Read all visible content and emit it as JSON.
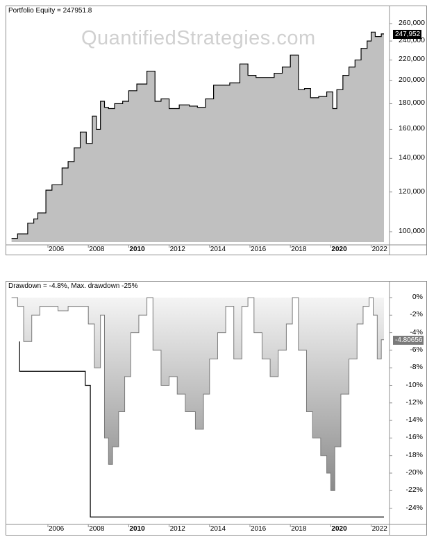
{
  "watermark": "QuantifiedStrategies.com",
  "chart_data": [
    {
      "type": "area",
      "title": "Portfolio Equity = 247951.8",
      "xlabel": "",
      "ylabel": "",
      "scale": "log",
      "ylim": [
        92000,
        268000
      ],
      "current_value_label": "247,952",
      "yticks": [
        "260,000",
        "240,000",
        "220,000",
        "200,000",
        "180,000",
        "160,000",
        "140,000",
        "120,000",
        "100,000"
      ],
      "xticks": [
        {
          "label": "2006",
          "bold": false
        },
        {
          "label": "2008",
          "bold": false
        },
        {
          "label": "2010",
          "bold": true
        },
        {
          "label": "2012",
          "bold": false
        },
        {
          "label": "2014",
          "bold": false
        },
        {
          "label": "2016",
          "bold": false
        },
        {
          "label": "2018",
          "bold": false
        },
        {
          "label": "2020",
          "bold": true
        },
        {
          "label": "2022",
          "bold": false
        }
      ],
      "x": [
        2004.2,
        2004.5,
        2005.0,
        2005.3,
        2005.5,
        2005.9,
        2006.2,
        2006.7,
        2007.0,
        2007.3,
        2007.6,
        2007.9,
        2008.2,
        2008.4,
        2008.6,
        2008.8,
        2009.0,
        2009.3,
        2009.7,
        2010.0,
        2010.4,
        2010.9,
        2011.3,
        2011.6,
        2012.0,
        2012.5,
        2013.0,
        2013.4,
        2013.8,
        2014.2,
        2014.6,
        2015.0,
        2015.5,
        2015.9,
        2016.3,
        2016.8,
        2017.2,
        2017.6,
        2018.0,
        2018.4,
        2018.7,
        2019.0,
        2019.4,
        2019.8,
        2020.1,
        2020.3,
        2020.6,
        2020.9,
        2021.2,
        2021.5,
        2021.8,
        2022.0,
        2022.2,
        2022.5
      ],
      "values": [
        97000,
        99000,
        104000,
        106000,
        109000,
        121000,
        124000,
        134000,
        138000,
        147000,
        158000,
        150000,
        170000,
        160000,
        182000,
        177000,
        176000,
        180000,
        182000,
        191000,
        197000,
        209000,
        182000,
        184000,
        176000,
        179000,
        178000,
        177000,
        184000,
        196000,
        196000,
        198000,
        216000,
        205000,
        203000,
        203000,
        207000,
        213000,
        225000,
        192000,
        193000,
        185000,
        186000,
        190000,
        176000,
        192000,
        205000,
        213000,
        220000,
        232000,
        240000,
        250000,
        245000,
        247952
      ]
    },
    {
      "type": "area",
      "title": "Drawdown = -4.8%, Max. drawdown -25%",
      "xlabel": "",
      "ylabel": "",
      "ylim": [
        -26,
        0.5
      ],
      "current_value_label": "-4.80656",
      "yticks": [
        "0%",
        "-2%",
        "-4%",
        "-6%",
        "-8%",
        "-10%",
        "-12%",
        "-14%",
        "-16%",
        "-18%",
        "-20%",
        "-22%",
        "-24%"
      ],
      "max_drawdown": -25,
      "current_drawdown": -4.8,
      "x": [
        2004.2,
        2004.5,
        2004.8,
        2005.2,
        2005.6,
        2006.0,
        2006.5,
        2007.0,
        2007.5,
        2008.0,
        2008.3,
        2008.6,
        2008.8,
        2009.0,
        2009.2,
        2009.5,
        2009.8,
        2010.1,
        2010.5,
        2010.9,
        2011.2,
        2011.6,
        2012.0,
        2012.4,
        2012.8,
        2013.3,
        2013.7,
        2014.0,
        2014.4,
        2014.8,
        2015.2,
        2015.6,
        2015.9,
        2016.2,
        2016.6,
        2017.0,
        2017.4,
        2017.8,
        2018.1,
        2018.4,
        2018.8,
        2019.1,
        2019.5,
        2019.8,
        2020.0,
        2020.2,
        2020.5,
        2020.9,
        2021.3,
        2021.6,
        2021.9,
        2022.1,
        2022.3,
        2022.5
      ],
      "values": [
        0,
        -1,
        -5,
        -2,
        -1,
        -1,
        -1.5,
        -1,
        -1,
        -3,
        -8,
        -2,
        -16,
        -19,
        -17,
        -13,
        -9,
        -4,
        -2,
        0,
        -6,
        -10,
        -9,
        -11,
        -13,
        -15,
        -11,
        -7,
        -4,
        -1,
        -7,
        -1,
        0,
        -4,
        -7,
        -9,
        -6,
        -3,
        0,
        -6,
        -13,
        -16,
        -18,
        -20,
        -22,
        -17,
        -11,
        -7,
        -3,
        -1,
        0,
        -2,
        -7,
        -4.8
      ]
    }
  ]
}
